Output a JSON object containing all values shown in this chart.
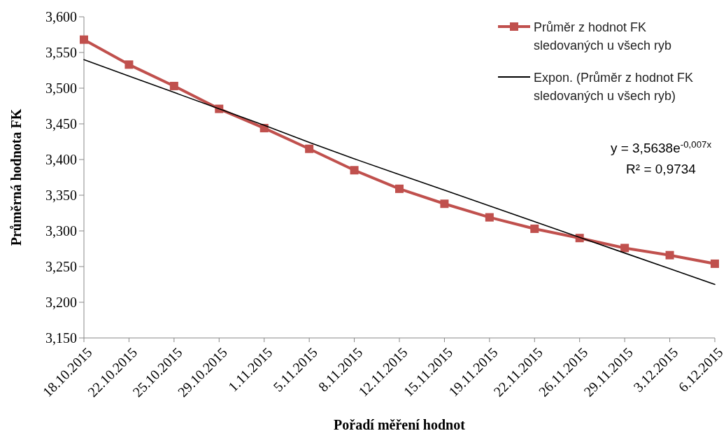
{
  "chart_data": {
    "type": "line",
    "xlabel": "Pořadí měření hodnot",
    "ylabel": "Průměrná hodnota FK",
    "categories": [
      "18.10.2015",
      "22.10.2015",
      "25.10.2015",
      "29.10.2015",
      "1.11.2015",
      "5.11.2015",
      "8.11.2015",
      "12.11.2015",
      "15.11.2015",
      "19.11.2015",
      "22.11.2015",
      "26.11.2015",
      "29.11.2015",
      "3.12.2015",
      "6.12.2015"
    ],
    "series": [
      {
        "name": "Průměr z hodnot FK sledovaných u všech ryb",
        "color": "#c0504d",
        "marker": "square",
        "values": [
          3.568,
          3.533,
          3.503,
          3.471,
          3.444,
          3.415,
          3.385,
          3.359,
          3.338,
          3.319,
          3.303,
          3.29,
          3.276,
          3.266,
          3.254
        ]
      },
      {
        "name": "Expon. (Průměr z hodnot FK sledovaných u všech ryb)",
        "type": "line",
        "color": "#000000",
        "marker": "none",
        "values": [
          3.54,
          3.517,
          3.494,
          3.471,
          3.448,
          3.424,
          3.401,
          3.379,
          3.357,
          3.335,
          3.313,
          3.291,
          3.269,
          3.247,
          3.225
        ]
      }
    ],
    "ylim": [
      3.15,
      3.6
    ],
    "yticks": [
      {
        "value": 3.15,
        "label": "3,150"
      },
      {
        "value": 3.2,
        "label": "3,200"
      },
      {
        "value": 3.25,
        "label": "3,250"
      },
      {
        "value": 3.3,
        "label": "3,300"
      },
      {
        "value": 3.35,
        "label": "3,350"
      },
      {
        "value": 3.4,
        "label": "3,400"
      },
      {
        "value": 3.45,
        "label": "3,450"
      },
      {
        "value": 3.5,
        "label": "3,500"
      },
      {
        "value": 3.55,
        "label": "3,550"
      },
      {
        "value": 3.6,
        "label": "3,600"
      }
    ],
    "grid": false,
    "legend": "top right",
    "annotations": [
      "y = 3,5638e$^{-0,007x}$",
      "R² = 0,9734"
    ]
  }
}
